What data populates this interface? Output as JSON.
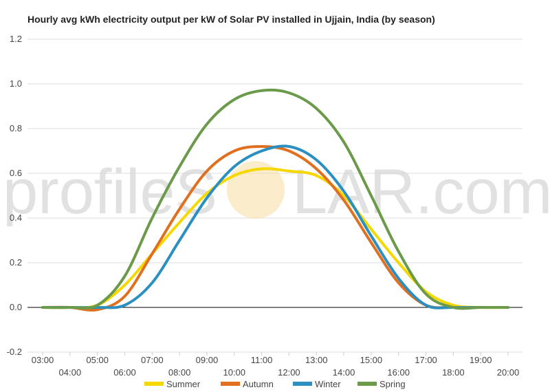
{
  "chart_data": {
    "type": "line",
    "title": "Hourly avg kWh electricity output per kW of Solar PV installed in Ujjain, India (by season)",
    "xlabel": "",
    "ylabel": "",
    "ylim": [
      -0.2,
      1.2
    ],
    "yticks": [
      "-0.2",
      "0.0",
      "0.2",
      "0.4",
      "0.6",
      "0.8",
      "1.0",
      "1.2"
    ],
    "x": [
      "03:00",
      "04:00",
      "05:00",
      "06:00",
      "07:00",
      "08:00",
      "09:00",
      "10:00",
      "11:00",
      "12:00",
      "13:00",
      "14:00",
      "15:00",
      "16:00",
      "17:00",
      "18:00",
      "19:00",
      "20:00"
    ],
    "grid": true,
    "legend": "bottom",
    "series": [
      {
        "name": "Summer",
        "color": "#f5d800",
        "values": [
          0.0,
          0.0,
          0.01,
          0.1,
          0.24,
          0.38,
          0.51,
          0.59,
          0.62,
          0.61,
          0.59,
          0.5,
          0.35,
          0.2,
          0.07,
          0.01,
          0.0,
          0.0
        ]
      },
      {
        "name": "Autumn",
        "color": "#e07020",
        "values": [
          0.0,
          0.0,
          -0.01,
          0.05,
          0.24,
          0.44,
          0.61,
          0.7,
          0.72,
          0.7,
          0.62,
          0.48,
          0.29,
          0.11,
          0.01,
          0.0,
          0.0,
          0.0
        ]
      },
      {
        "name": "Winter",
        "color": "#2b8fc0",
        "values": [
          0.0,
          0.0,
          0.0,
          0.01,
          0.11,
          0.3,
          0.49,
          0.63,
          0.7,
          0.72,
          0.66,
          0.52,
          0.32,
          0.13,
          0.01,
          0.0,
          0.0,
          0.0
        ]
      },
      {
        "name": "Spring",
        "color": "#6a9a4a",
        "values": [
          0.0,
          0.0,
          0.01,
          0.14,
          0.4,
          0.63,
          0.82,
          0.93,
          0.97,
          0.96,
          0.89,
          0.74,
          0.5,
          0.25,
          0.06,
          0.0,
          0.0,
          0.0
        ]
      }
    ]
  },
  "watermark": {
    "left": "profileS",
    "right": "LAR.com"
  }
}
